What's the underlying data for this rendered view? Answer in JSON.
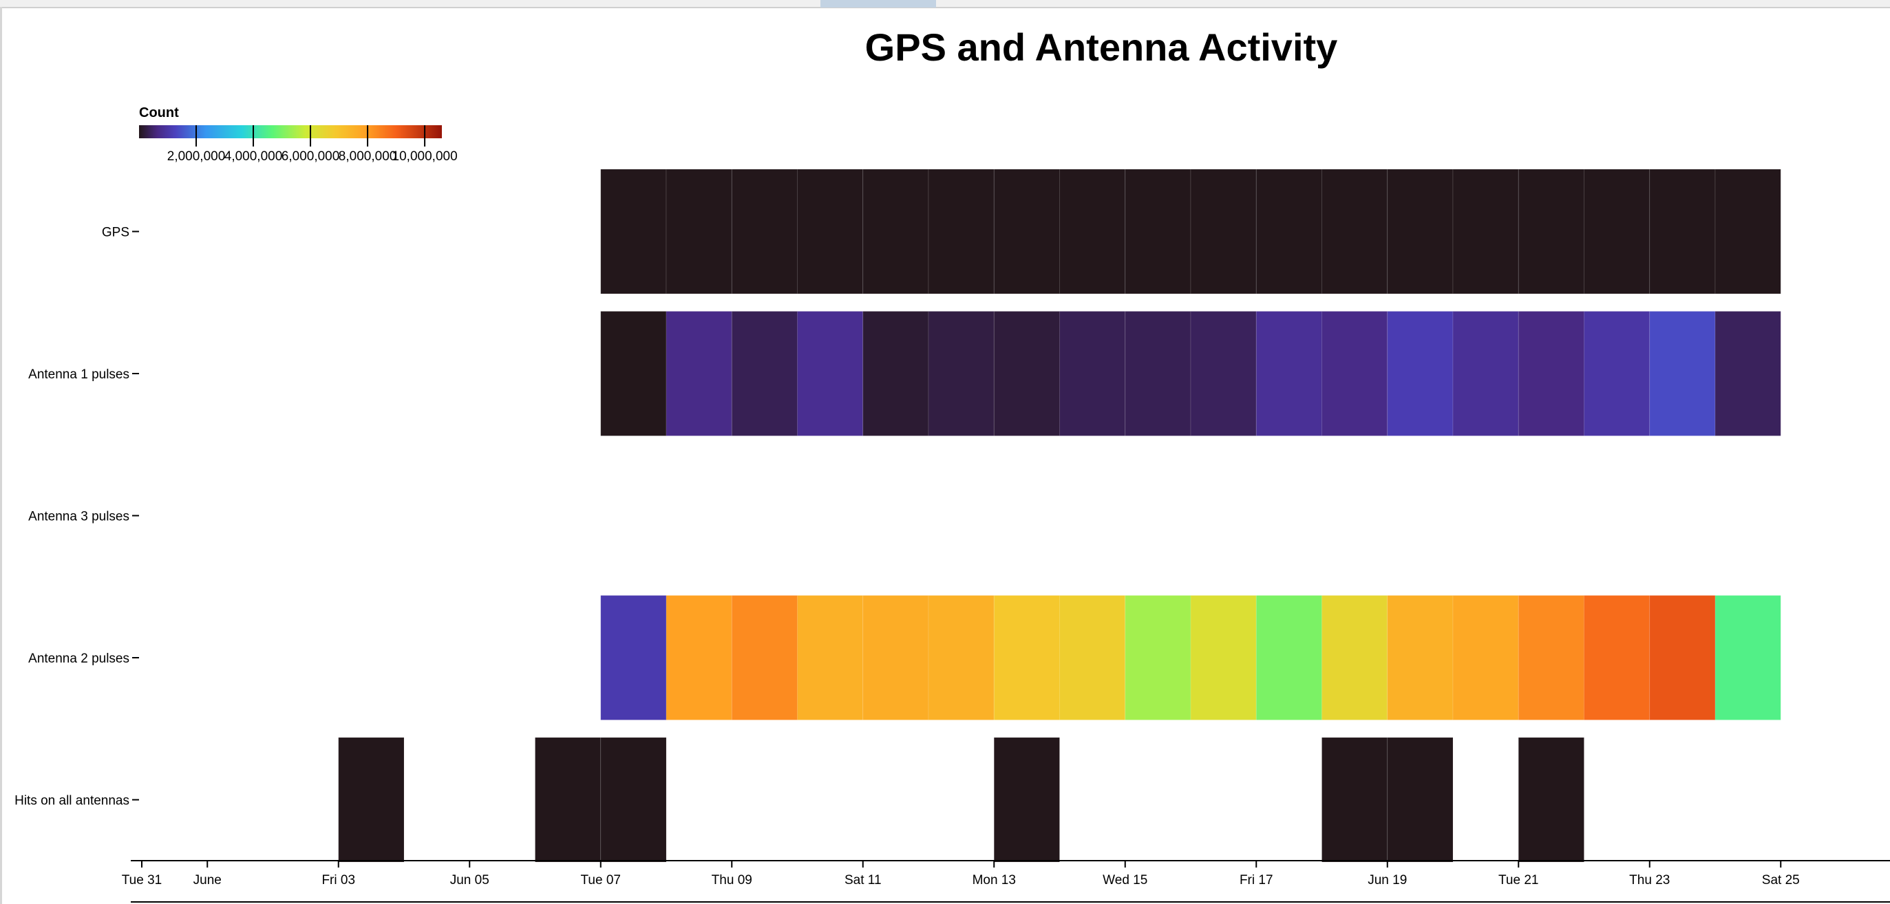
{
  "chart_data": {
    "type": "heatmap",
    "title": "GPS and Antenna Activity",
    "legend": {
      "title": "Count",
      "placement": "top-left",
      "min": 0,
      "max": 10600000,
      "ticks": [
        2000000,
        4000000,
        6000000,
        8000000,
        10000000
      ],
      "tick_labels": [
        "2,000,000",
        "4,000,000",
        "6,000,000",
        "8,000,000",
        "10,000,000"
      ],
      "colormap": "turbo-like (dark purple → blue → cyan → green → yellow → orange → red)"
    },
    "rows": [
      "GPS",
      "Antenna 1 pulses",
      "Antenna 3 pulses",
      "Antenna 2 pulses",
      "Hits on all antennas"
    ],
    "x_domain": [
      "2022-05-31",
      "2022-06-26"
    ],
    "x_ticks": [
      {
        "date": "2022-05-31",
        "label": "Tue 31"
      },
      {
        "date": "2022-06-01",
        "label": "June"
      },
      {
        "date": "2022-06-03",
        "label": "Fri 03"
      },
      {
        "date": "2022-06-05",
        "label": "Jun 05"
      },
      {
        "date": "2022-06-07",
        "label": "Tue 07"
      },
      {
        "date": "2022-06-09",
        "label": "Thu 09"
      },
      {
        "date": "2022-06-11",
        "label": "Sat 11"
      },
      {
        "date": "2022-06-13",
        "label": "Mon 13"
      },
      {
        "date": "2022-06-15",
        "label": "Wed 15"
      },
      {
        "date": "2022-06-17",
        "label": "Fri 17"
      },
      {
        "date": "2022-06-19",
        "label": "Jun 19"
      },
      {
        "date": "2022-06-21",
        "label": "Tue 21"
      },
      {
        "date": "2022-06-23",
        "label": "Thu 23"
      },
      {
        "date": "2022-06-25",
        "label": "Sat 25"
      }
    ],
    "cells": [
      {
        "row": "GPS",
        "date": "2022-06-07",
        "value": 0
      },
      {
        "row": "GPS",
        "date": "2022-06-08",
        "value": 0
      },
      {
        "row": "GPS",
        "date": "2022-06-09",
        "value": 0
      },
      {
        "row": "GPS",
        "date": "2022-06-10",
        "value": 0
      },
      {
        "row": "GPS",
        "date": "2022-06-11",
        "value": 0
      },
      {
        "row": "GPS",
        "date": "2022-06-12",
        "value": 0
      },
      {
        "row": "GPS",
        "date": "2022-06-13",
        "value": 0
      },
      {
        "row": "GPS",
        "date": "2022-06-14",
        "value": 0
      },
      {
        "row": "GPS",
        "date": "2022-06-15",
        "value": 0
      },
      {
        "row": "GPS",
        "date": "2022-06-16",
        "value": 0
      },
      {
        "row": "GPS",
        "date": "2022-06-17",
        "value": 0
      },
      {
        "row": "GPS",
        "date": "2022-06-18",
        "value": 0
      },
      {
        "row": "GPS",
        "date": "2022-06-19",
        "value": 0
      },
      {
        "row": "GPS",
        "date": "2022-06-20",
        "value": 0
      },
      {
        "row": "GPS",
        "date": "2022-06-21",
        "value": 0
      },
      {
        "row": "GPS",
        "date": "2022-06-22",
        "value": 0
      },
      {
        "row": "GPS",
        "date": "2022-06-23",
        "value": 0
      },
      {
        "row": "GPS",
        "date": "2022-06-24",
        "value": 0
      },
      {
        "row": "Antenna 1 pulses",
        "date": "2022-06-07",
        "value": 0
      },
      {
        "row": "Antenna 1 pulses",
        "date": "2022-06-08",
        "value": 700000
      },
      {
        "row": "Antenna 1 pulses",
        "date": "2022-06-09",
        "value": 350000
      },
      {
        "row": "Antenna 1 pulses",
        "date": "2022-06-10",
        "value": 800000
      },
      {
        "row": "Antenna 1 pulses",
        "date": "2022-06-11",
        "value": 150000
      },
      {
        "row": "Antenna 1 pulses",
        "date": "2022-06-12",
        "value": 250000
      },
      {
        "row": "Antenna 1 pulses",
        "date": "2022-06-13",
        "value": 200000
      },
      {
        "row": "Antenna 1 pulses",
        "date": "2022-06-14",
        "value": 350000
      },
      {
        "row": "Antenna 1 pulses",
        "date": "2022-06-15",
        "value": 350000
      },
      {
        "row": "Antenna 1 pulses",
        "date": "2022-06-16",
        "value": 400000
      },
      {
        "row": "Antenna 1 pulses",
        "date": "2022-06-17",
        "value": 850000
      },
      {
        "row": "Antenna 1 pulses",
        "date": "2022-06-18",
        "value": 700000
      },
      {
        "row": "Antenna 1 pulses",
        "date": "2022-06-19",
        "value": 1150000
      },
      {
        "row": "Antenna 1 pulses",
        "date": "2022-06-20",
        "value": 850000
      },
      {
        "row": "Antenna 1 pulses",
        "date": "2022-06-21",
        "value": 650000
      },
      {
        "row": "Antenna 1 pulses",
        "date": "2022-06-22",
        "value": 1000000
      },
      {
        "row": "Antenna 1 pulses",
        "date": "2022-06-23",
        "value": 1400000
      },
      {
        "row": "Antenna 1 pulses",
        "date": "2022-06-24",
        "value": 400000
      },
      {
        "row": "Antenna 2 pulses",
        "date": "2022-06-07",
        "value": 1100000
      },
      {
        "row": "Antenna 2 pulses",
        "date": "2022-06-08",
        "value": 7900000
      },
      {
        "row": "Antenna 2 pulses",
        "date": "2022-06-09",
        "value": 8300000
      },
      {
        "row": "Antenna 2 pulses",
        "date": "2022-06-10",
        "value": 7500000
      },
      {
        "row": "Antenna 2 pulses",
        "date": "2022-06-11",
        "value": 7600000
      },
      {
        "row": "Antenna 2 pulses",
        "date": "2022-06-12",
        "value": 7500000
      },
      {
        "row": "Antenna 2 pulses",
        "date": "2022-06-13",
        "value": 6900000
      },
      {
        "row": "Antenna 2 pulses",
        "date": "2022-06-14",
        "value": 6700000
      },
      {
        "row": "Antenna 2 pulses",
        "date": "2022-06-15",
        "value": 5400000
      },
      {
        "row": "Antenna 2 pulses",
        "date": "2022-06-16",
        "value": 6200000
      },
      {
        "row": "Antenna 2 pulses",
        "date": "2022-06-17",
        "value": 5000000
      },
      {
        "row": "Antenna 2 pulses",
        "date": "2022-06-18",
        "value": 6500000
      },
      {
        "row": "Antenna 2 pulses",
        "date": "2022-06-19",
        "value": 7500000
      },
      {
        "row": "Antenna 2 pulses",
        "date": "2022-06-20",
        "value": 7700000
      },
      {
        "row": "Antenna 2 pulses",
        "date": "2022-06-21",
        "value": 8300000
      },
      {
        "row": "Antenna 2 pulses",
        "date": "2022-06-22",
        "value": 8800000
      },
      {
        "row": "Antenna 2 pulses",
        "date": "2022-06-23",
        "value": 9200000
      },
      {
        "row": "Antenna 2 pulses",
        "date": "2022-06-24",
        "value": 4500000
      },
      {
        "row": "Hits on all antennas",
        "date": "2022-06-03",
        "value": 0
      },
      {
        "row": "Hits on all antennas",
        "date": "2022-06-06",
        "value": 0
      },
      {
        "row": "Hits on all antennas",
        "date": "2022-06-07",
        "value": 0
      },
      {
        "row": "Hits on all antennas",
        "date": "2022-06-13",
        "value": 0
      },
      {
        "row": "Hits on all antennas",
        "date": "2022-06-18",
        "value": 0
      },
      {
        "row": "Hits on all antennas",
        "date": "2022-06-19",
        "value": 0
      },
      {
        "row": "Hits on all antennas",
        "date": "2022-06-21",
        "value": 0
      }
    ]
  }
}
